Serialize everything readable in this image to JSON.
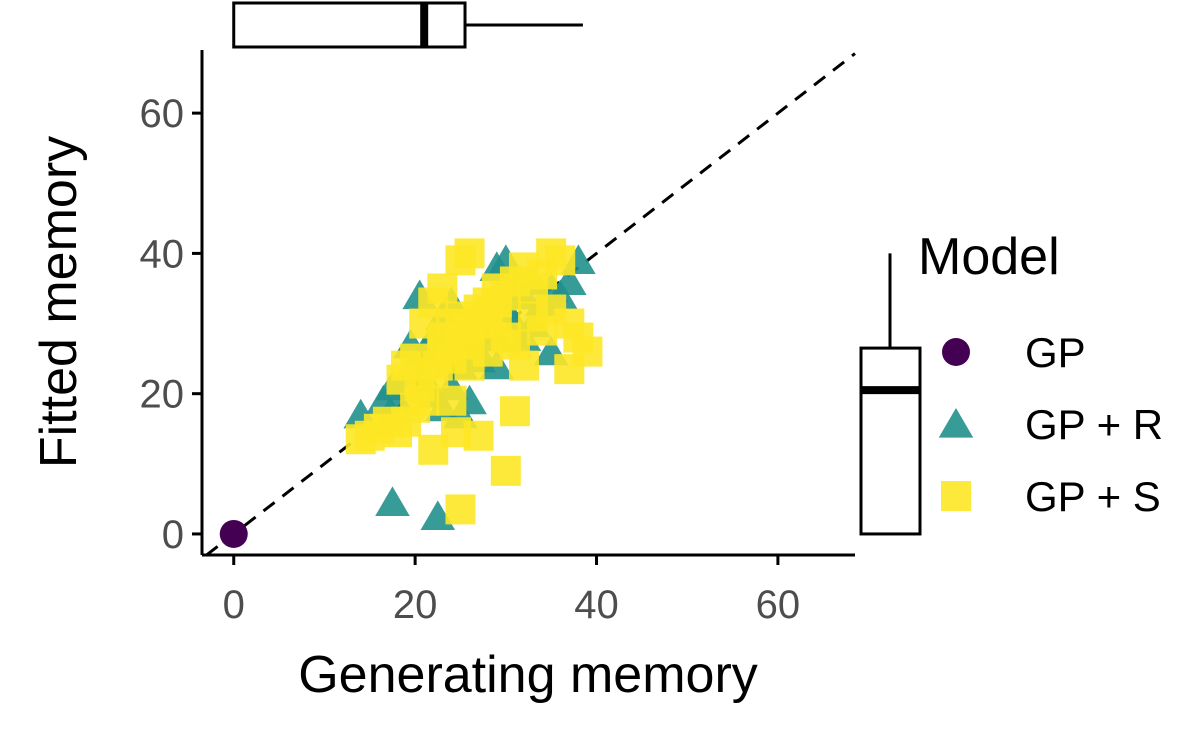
{
  "chart_data": {
    "type": "scatter",
    "title": "",
    "xlabel": "Generating memory",
    "ylabel": "Fitted memory",
    "xlim": [
      -3.5,
      68.5
    ],
    "ylim": [
      -3,
      69
    ],
    "x_ticks": [
      0,
      20,
      40,
      60
    ],
    "y_ticks": [
      0,
      20,
      40,
      60
    ],
    "grid": false,
    "reference_line": "y = x (dashed)",
    "legend_title": "Model",
    "legend_placement": "right",
    "series": [
      {
        "name": "GP",
        "marker": "circle",
        "color": "#440154",
        "points": [
          [
            0,
            0
          ]
        ]
      },
      {
        "name": "GP + R",
        "marker": "triangle",
        "color": "#21908C",
        "points": [
          [
            14,
            17
          ],
          [
            16.5,
            19
          ],
          [
            17.5,
            21
          ],
          [
            19,
            22.5
          ],
          [
            20,
            24
          ],
          [
            21,
            26
          ],
          [
            22,
            28
          ],
          [
            20.5,
            34
          ],
          [
            23,
            31
          ],
          [
            24,
            33
          ],
          [
            25,
            30
          ],
          [
            26,
            27
          ],
          [
            27,
            25
          ],
          [
            28,
            29
          ],
          [
            29,
            28
          ],
          [
            30,
            32
          ],
          [
            31,
            30
          ],
          [
            32,
            34
          ],
          [
            33,
            36
          ],
          [
            30,
            39
          ],
          [
            29,
            38
          ],
          [
            34,
            33
          ],
          [
            35,
            35
          ],
          [
            36,
            34
          ],
          [
            37,
            36
          ],
          [
            38,
            39
          ],
          [
            35,
            26
          ],
          [
            22,
            20
          ],
          [
            23,
            18
          ],
          [
            24,
            21
          ],
          [
            25,
            17
          ],
          [
            26,
            19
          ],
          [
            21,
            21
          ],
          [
            18,
            19
          ],
          [
            17.5,
            4.5
          ],
          [
            22.5,
            2.5
          ],
          [
            27,
            26
          ],
          [
            28,
            31
          ],
          [
            32,
            28
          ],
          [
            33,
            30
          ],
          [
            31,
            35
          ],
          [
            25,
            24
          ],
          [
            23,
            27
          ],
          [
            19.5,
            27
          ],
          [
            29,
            24
          ]
        ]
      },
      {
        "name": "GP + S",
        "marker": "square",
        "color": "#FDE725",
        "points": [
          [
            14,
            13.5
          ],
          [
            15,
            14
          ],
          [
            16,
            15
          ],
          [
            17,
            16
          ],
          [
            18,
            14.5
          ],
          [
            19,
            16
          ],
          [
            20,
            18
          ],
          [
            21,
            19
          ],
          [
            19,
            24
          ],
          [
            20,
            25
          ],
          [
            22,
            23
          ],
          [
            23,
            26
          ],
          [
            24,
            25
          ],
          [
            25,
            27
          ],
          [
            26,
            28
          ],
          [
            27,
            30
          ],
          [
            28,
            31
          ],
          [
            29,
            33
          ],
          [
            30,
            34
          ],
          [
            31,
            36
          ],
          [
            32,
            38
          ],
          [
            33,
            35
          ],
          [
            34,
            37
          ],
          [
            35,
            40
          ],
          [
            36,
            39
          ],
          [
            37,
            30
          ],
          [
            38,
            28
          ],
          [
            39,
            26
          ],
          [
            37,
            23.5
          ],
          [
            31,
            17.5
          ],
          [
            30,
            9
          ],
          [
            22,
            12
          ],
          [
            24.5,
            14.5
          ],
          [
            27,
            14
          ],
          [
            25,
            3.5
          ],
          [
            25,
            39
          ],
          [
            26,
            40
          ],
          [
            23,
            28
          ],
          [
            24,
            30
          ],
          [
            25,
            31
          ],
          [
            26,
            29
          ],
          [
            27,
            32
          ],
          [
            28,
            33
          ],
          [
            29,
            35
          ],
          [
            30,
            28
          ],
          [
            31,
            27
          ],
          [
            33,
            31
          ],
          [
            34,
            29
          ],
          [
            21,
            30
          ],
          [
            22,
            33
          ],
          [
            23,
            35
          ],
          [
            20.5,
            21
          ],
          [
            22.5,
            24
          ],
          [
            18.5,
            22
          ],
          [
            26,
            24
          ],
          [
            24,
            19
          ],
          [
            28,
            26
          ],
          [
            32,
            24
          ],
          [
            29,
            30
          ],
          [
            35,
            32
          ]
        ]
      }
    ],
    "marginal_boxplots": {
      "top_x": {
        "min": 0,
        "q1": 0,
        "median": 21,
        "q3": 25.5,
        "max": 38.5
      },
      "right_y": {
        "min": 0,
        "q1": 0,
        "median": 20.5,
        "q3": 26.5,
        "max": 40
      }
    }
  }
}
